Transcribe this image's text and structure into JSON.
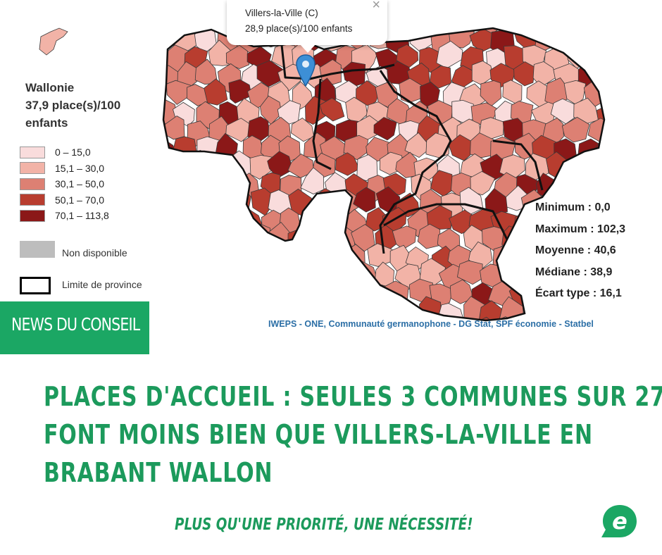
{
  "map": {
    "region": {
      "name": "Wallonie",
      "value": "37,9 place(s)/100",
      "unit": "enfants"
    },
    "legend": [
      {
        "label": "0 – 15,0",
        "color": "#f9dcdc"
      },
      {
        "label": "15,1 – 30,0",
        "color": "#f2b3a7"
      },
      {
        "label": "30,1 – 50,0",
        "color": "#dd8073"
      },
      {
        "label": "50,1 – 70,0",
        "color": "#b83d2f"
      },
      {
        "label": "70,1 – 113,8",
        "color": "#8b1818"
      }
    ],
    "not_available": {
      "label": "Non disponible",
      "color": "#bdbdbd"
    },
    "province_limit": {
      "label": "Limite de province"
    },
    "stats": [
      {
        "label": "Minimum : 0,0"
      },
      {
        "label": "Maximum : 102,3"
      },
      {
        "label": "Moyenne : 40,6"
      },
      {
        "label": "Médiane : 38,9"
      },
      {
        "label": "Écart type : 16,1"
      }
    ],
    "attribution": [
      "IWEPS - ONE",
      ", ",
      "Communauté germanophone - DG Stat",
      ", ",
      "SPF économie - Statbel"
    ],
    "popup": {
      "title": "Villers-la-Ville (C)",
      "value": "28,9 place(s)/100 enfants",
      "close": "×"
    }
  },
  "badge": {
    "label": "NEWS DU CONSEIL",
    "color": "#1ba764"
  },
  "headline": {
    "lines": [
      "PLACES D'ACCUEIL : SEULES 3 COMMUNES SUR 27",
      "FONT MOINS BIEN QUE VILLERS-LA-VILLE EN",
      "BRABANT WALLON"
    ],
    "color": "#1c9a5c"
  },
  "slogan": "PLUS QU'UNE PRIORITÉ, UNE NÉCESSITÉ!",
  "logo": {
    "icon": "ecolo-e-icon",
    "letter": "e"
  }
}
